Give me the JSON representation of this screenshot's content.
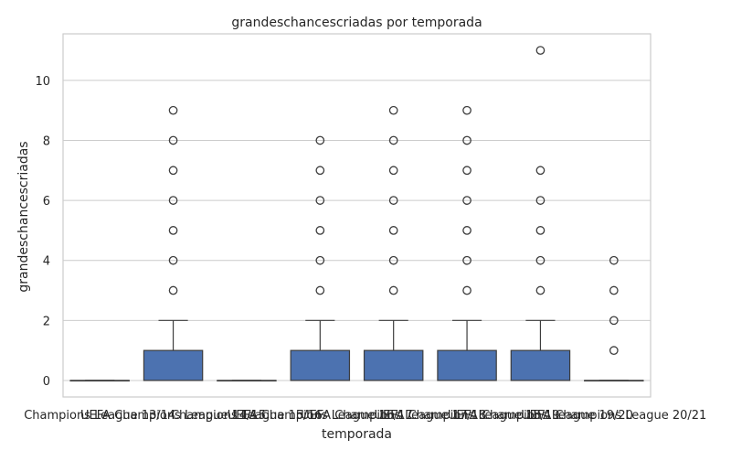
{
  "chart_data": {
    "type": "box",
    "title": "grandeschancescriadas por temporada",
    "xlabel": "temporada",
    "ylabel": "grandeschancescriadas",
    "ylim": [
      -0.55,
      11.55
    ],
    "yticks": [
      0,
      2,
      4,
      6,
      8,
      10
    ],
    "grid": true,
    "box_color": "#4c72b0",
    "categories": [
      "Champions League 13/14",
      "UEFA Champions League 14/15",
      "Champions League 15/16",
      "UEFA Champions League 16/17",
      "UEFA Champions League 17/18",
      "UEFA Champions League 18/19",
      "UEFA Champions League 19/20",
      "UEFA Champions League 20/21"
    ],
    "boxes": [
      {
        "q1": 0,
        "median": 0,
        "q3": 0,
        "whisker_low": 0,
        "whisker_high": 0,
        "outliers": []
      },
      {
        "q1": 0,
        "median": 0,
        "q3": 1,
        "whisker_low": 0,
        "whisker_high": 2,
        "outliers": [
          3,
          4,
          5,
          6,
          7,
          8,
          9
        ]
      },
      {
        "q1": 0,
        "median": 0,
        "q3": 0,
        "whisker_low": 0,
        "whisker_high": 0,
        "outliers": []
      },
      {
        "q1": 0,
        "median": 0,
        "q3": 1,
        "whisker_low": 0,
        "whisker_high": 2,
        "outliers": [
          3,
          4,
          5,
          6,
          7,
          8
        ]
      },
      {
        "q1": 0,
        "median": 0,
        "q3": 1,
        "whisker_low": 0,
        "whisker_high": 2,
        "outliers": [
          3,
          4,
          5,
          6,
          7,
          8,
          9
        ]
      },
      {
        "q1": 0,
        "median": 0,
        "q3": 1,
        "whisker_low": 0,
        "whisker_high": 2,
        "outliers": [
          3,
          4,
          5,
          6,
          7,
          8,
          9
        ]
      },
      {
        "q1": 0,
        "median": 0,
        "q3": 1,
        "whisker_low": 0,
        "whisker_high": 2,
        "outliers": [
          3,
          4,
          5,
          6,
          7,
          11
        ]
      },
      {
        "q1": 0,
        "median": 0,
        "q3": 0,
        "whisker_low": 0,
        "whisker_high": 0,
        "outliers": [
          1,
          2,
          3,
          4
        ]
      }
    ]
  }
}
